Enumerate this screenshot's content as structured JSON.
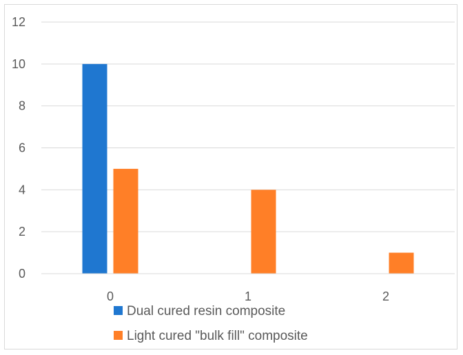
{
  "chart_data": {
    "type": "bar",
    "title": "",
    "xlabel": "",
    "ylabel": "",
    "categories": [
      "0",
      "1",
      "2"
    ],
    "ylim": [
      0,
      12
    ],
    "yticks": [
      "0",
      "2",
      "4",
      "6",
      "8",
      "10",
      "12"
    ],
    "grid": true,
    "legend_position": "bottom",
    "series": [
      {
        "name": "Dual cured resin composite",
        "color": "#1f77d0",
        "values": [
          10,
          0,
          0
        ]
      },
      {
        "name": "Light cured \"bulk fill\" composite",
        "color": "#ff7f27",
        "values": [
          5,
          4,
          1
        ]
      }
    ]
  }
}
